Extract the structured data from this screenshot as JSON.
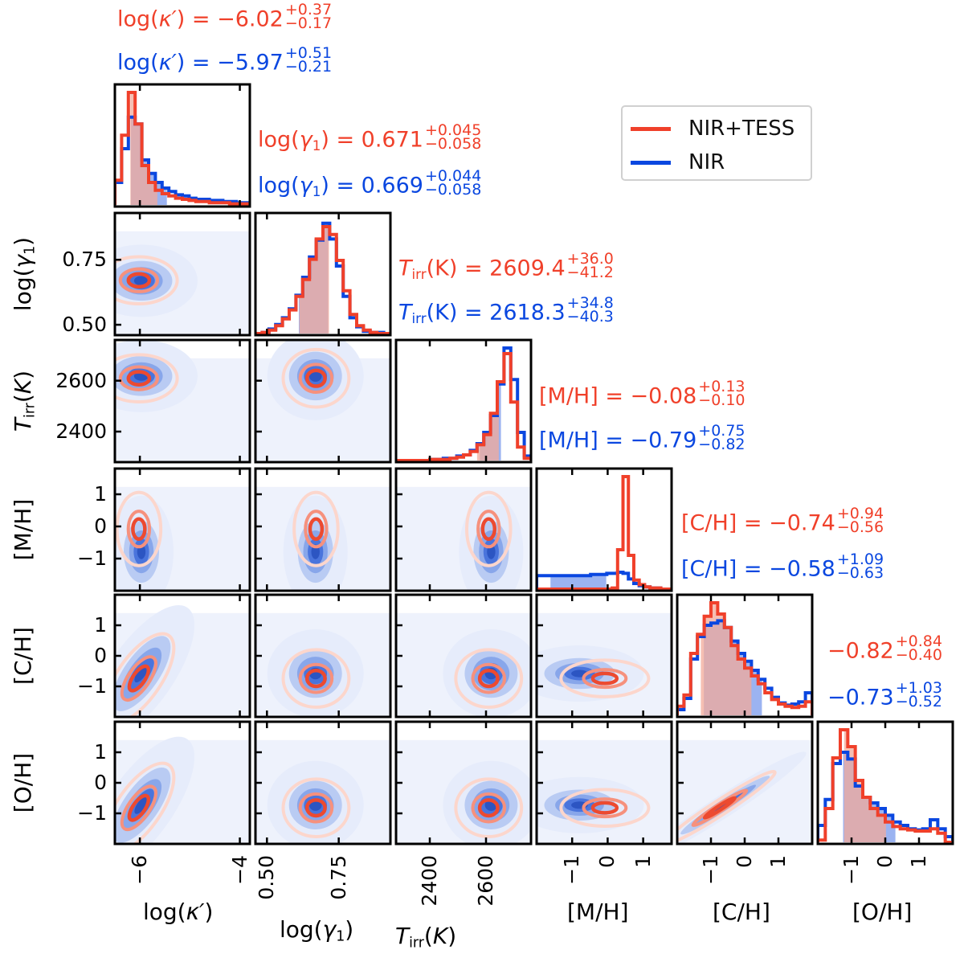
{
  "chart_data": {
    "type": "corner",
    "title": "",
    "parameters": [
      {
        "key": "logk",
        "label": "log(κ′)",
        "range": [
          -6.5,
          -3.8
        ],
        "ticks": [
          -6,
          -4
        ],
        "tick_labels": [
          "−6",
          "−4"
        ]
      },
      {
        "key": "logg",
        "label": "log(γ₁)",
        "range": [
          0.46,
          0.93
        ],
        "ticks": [
          0.5,
          0.75
        ],
        "tick_labels": [
          "0.50",
          "0.75"
        ]
      },
      {
        "key": "tirr",
        "label": "T_irr(K)",
        "range": [
          2280,
          2760
        ],
        "ticks": [
          2400,
          2600
        ],
        "tick_labels": [
          "2400",
          "2600"
        ]
      },
      {
        "key": "mh",
        "label": "[M/H]",
        "range": [
          -2.0,
          1.8
        ],
        "ticks": [
          -1,
          0,
          1
        ],
        "tick_labels": [
          "−1",
          "0",
          "1"
        ]
      },
      {
        "key": "ch",
        "label": "[C/H]",
        "range": [
          -2.0,
          2.0
        ],
        "ticks": [
          -1,
          0,
          1
        ],
        "tick_labels": [
          "−1",
          "0",
          "1"
        ]
      },
      {
        "key": "oh",
        "label": "[O/H]",
        "range": [
          -2.0,
          2.0
        ],
        "ticks": [
          -1,
          0,
          1
        ],
        "tick_labels": [
          "−1",
          "0",
          "1"
        ]
      }
    ],
    "y_tick_labels": {
      "logg": [
        "0.75",
        "0.50"
      ],
      "tirr": [
        "2600",
        "2400"
      ],
      "mh": [
        "1",
        "0",
        "−1"
      ],
      "ch": [
        "1",
        "0",
        "−1"
      ],
      "oh": [
        "1",
        "0",
        "−1"
      ]
    },
    "series": [
      {
        "name": "NIR+TESS",
        "color": "#f0402a",
        "medians": [
          -6.02,
          0.671,
          2609.4,
          -0.08,
          -0.74,
          -0.82
        ],
        "plus": [
          0.37,
          0.045,
          36.0,
          0.13,
          0.94,
          0.84
        ],
        "minus": [
          0.17,
          0.058,
          41.2,
          0.1,
          0.56,
          0.4
        ]
      },
      {
        "name": "NIR",
        "color": "#0a47e0",
        "medians": [
          -5.97,
          0.669,
          2618.3,
          -0.79,
          -0.58,
          -0.73
        ],
        "plus": [
          0.51,
          0.044,
          34.8,
          0.75,
          1.09,
          1.03
        ],
        "minus": [
          0.21,
          0.058,
          40.3,
          0.82,
          0.63,
          0.52
        ]
      }
    ],
    "histograms": {
      "logk": {
        "red": [
          0.22,
          0.62,
          1.0,
          0.72,
          0.35,
          0.2,
          0.13,
          0.1,
          0.08,
          0.06,
          0.05,
          0.04,
          0.03,
          0.03,
          0.02,
          0.02,
          0.02,
          0.01,
          0.01,
          0.01
        ],
        "blue": [
          0.2,
          0.5,
          0.78,
          0.72,
          0.4,
          0.28,
          0.2,
          0.15,
          0.12,
          0.09,
          0.08,
          0.06,
          0.05,
          0.05,
          0.04,
          0.04,
          0.03,
          0.03,
          0.02,
          0.02
        ]
      },
      "logg": {
        "red": [
          0.0,
          0.01,
          0.03,
          0.07,
          0.13,
          0.21,
          0.33,
          0.48,
          0.66,
          0.84,
          0.95,
          0.88,
          0.65,
          0.38,
          0.17,
          0.07,
          0.03,
          0.01,
          0.0,
          0.0
        ],
        "blue": [
          0.0,
          0.01,
          0.04,
          0.08,
          0.14,
          0.22,
          0.34,
          0.5,
          0.68,
          0.83,
          0.98,
          0.84,
          0.6,
          0.33,
          0.14,
          0.06,
          0.02,
          0.01,
          0.01,
          0.0
        ]
      },
      "tirr": {
        "red": [
          0.0,
          0.0,
          0.0,
          0.0,
          0.0,
          0.01,
          0.01,
          0.01,
          0.02,
          0.03,
          0.05,
          0.08,
          0.14,
          0.23,
          0.42,
          0.7,
          0.95,
          0.52,
          0.12,
          0.02
        ],
        "blue": [
          0.0,
          0.0,
          0.0,
          0.0,
          0.0,
          0.01,
          0.01,
          0.02,
          0.02,
          0.04,
          0.05,
          0.09,
          0.15,
          0.25,
          0.4,
          0.68,
          1.0,
          0.72,
          0.25,
          0.04
        ]
      },
      "mh": {
        "red": [
          0,
          0,
          0,
          0,
          0,
          0,
          0,
          0,
          0,
          0,
          0,
          0,
          0,
          0,
          0.01,
          0.35,
          1.0,
          0.3,
          0.08,
          0.04,
          0.02,
          0.01,
          0.01,
          0,
          0
        ],
        "blue": [
          0.12,
          0.12,
          0.12,
          0.12,
          0.12,
          0.12,
          0.12,
          0.12,
          0.12,
          0.12,
          0.13,
          0.13,
          0.13,
          0.14,
          0.14,
          0.15,
          0.14,
          0.09,
          0.05,
          0.03,
          0.02,
          0.01,
          0.01,
          0,
          0
        ]
      },
      "ch": {
        "red": [
          0.08,
          0.18,
          0.55,
          0.72,
          0.88,
          1.0,
          0.9,
          0.78,
          0.62,
          0.5,
          0.42,
          0.35,
          0.28,
          0.2,
          0.14,
          0.1,
          0.08,
          0.07,
          0.08,
          0.12
        ],
        "blue": [
          0.05,
          0.15,
          0.5,
          0.7,
          0.8,
          0.82,
          0.84,
          0.78,
          0.66,
          0.55,
          0.48,
          0.4,
          0.32,
          0.24,
          0.16,
          0.11,
          0.09,
          0.1,
          0.12,
          0.2
        ]
      },
      "oh": {
        "red": [
          0.02,
          0.3,
          0.75,
          1.0,
          0.85,
          0.55,
          0.4,
          0.3,
          0.24,
          0.18,
          0.14,
          0.12,
          0.11,
          0.1,
          0.1,
          0.12,
          0.08,
          0.0
        ],
        "blue": [
          0.15,
          0.38,
          0.7,
          0.8,
          0.74,
          0.5,
          0.4,
          0.35,
          0.3,
          0.24,
          0.18,
          0.15,
          0.12,
          0.11,
          0.12,
          0.2,
          0.12,
          0.05
        ]
      }
    },
    "legend": {
      "entries": [
        "NIR+TESS",
        "NIR"
      ],
      "placement": "top-right"
    },
    "grid": false
  },
  "stats": [
    {
      "name": "logk",
      "red": {
        "prefix": "log(",
        "var": "κ′",
        "suffix": ") = −6.02",
        "plus": "+0.37",
        "minus": "−0.17"
      },
      "blue": {
        "prefix": "log(",
        "var": "κ′",
        "suffix": ") = −5.97",
        "plus": "+0.51",
        "minus": "−0.21"
      }
    },
    {
      "name": "logg",
      "red": {
        "prefix": "log(",
        "var": "γ",
        "sub": "1",
        "suffix": ") = 0.671",
        "plus": "+0.045",
        "minus": "−0.058"
      },
      "blue": {
        "prefix": "log(",
        "var": "γ",
        "sub": "1",
        "suffix": ") = 0.669",
        "plus": "+0.044",
        "minus": "−0.058"
      }
    },
    {
      "name": "tirr",
      "red": {
        "prefix": "",
        "var": "T",
        "sub": "irr",
        "suffix": "(K) = 2609.4",
        "plus": "+36.0",
        "minus": "−41.2"
      },
      "blue": {
        "prefix": "",
        "var": "T",
        "sub": "irr",
        "suffix": "(K) = 2618.3",
        "plus": "+34.8",
        "minus": "−40.3"
      }
    },
    {
      "name": "mh",
      "red": {
        "prefix": "[M/H] = −0.08",
        "plus": "+0.13",
        "minus": "−0.10"
      },
      "blue": {
        "prefix": "[M/H] = −0.79",
        "plus": "+0.75",
        "minus": "−0.82"
      }
    },
    {
      "name": "ch",
      "red": {
        "prefix": "[C/H] = −0.74",
        "plus": "+0.94",
        "minus": "−0.56"
      },
      "blue": {
        "prefix": "[C/H] = −0.58",
        "plus": "+1.09",
        "minus": "−0.63"
      }
    },
    {
      "name": "oh",
      "red": {
        "prefix": "−0.82",
        "plus": "+0.84",
        "minus": "−0.40"
      },
      "blue": {
        "prefix": "−0.73",
        "plus": "+1.03",
        "minus": "−0.52"
      }
    }
  ],
  "axis_labels": {
    "x": [
      "log(κ′)",
      "log(γ₁)",
      "T_irr(K)",
      "[M/H]",
      "[C/H]",
      "[O/H]"
    ],
    "y": [
      "log(γ₁)",
      "T_irr(K)",
      "[M/H]",
      "[C/H]",
      "[O/H]"
    ]
  },
  "legend": {
    "entries": [
      {
        "label": "NIR+TESS",
        "color": "#f0402a"
      },
      {
        "label": "NIR",
        "color": "#0a47e0"
      }
    ]
  }
}
